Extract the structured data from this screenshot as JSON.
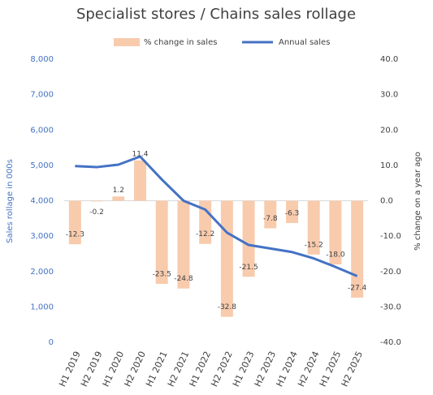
{
  "chart_data": {
    "type": "combo",
    "title": "Specialist stores / Chains sales rollage",
    "categories": [
      "H1 2019",
      "H2 2019",
      "H1 2020",
      "H2 2020",
      "H1 2021",
      "H2 2021",
      "H1 2022",
      "H2 2022",
      "H1 2023",
      "H2 2023",
      "H1 2024",
      "H2 2024",
      "H1 2025",
      "H2 2025"
    ],
    "series": [
      {
        "name": "% change in sales",
        "type": "bar",
        "axis": "y2",
        "color": "#f8cbad",
        "values": [
          -12.3,
          -0.2,
          1.2,
          11.4,
          -23.5,
          -24.8,
          -12.2,
          -32.8,
          -21.5,
          -7.8,
          -6.3,
          -15.2,
          -18.0,
          -27.4
        ],
        "value_labels": [
          "-12.3",
          "-0.2",
          "1.2",
          "11.4",
          "-23.5",
          "-24.8",
          "-12.2",
          "-32.8",
          "-21.5",
          "-7.8",
          "-6.3",
          "-15.2",
          "-18.0",
          "-27.4"
        ]
      },
      {
        "name": "Annual sales",
        "type": "line",
        "axis": "y",
        "color": "#4472c4",
        "values": [
          4980,
          4950,
          5020,
          5250,
          4600,
          4000,
          3750,
          3100,
          2750,
          2650,
          2550,
          2370,
          2130,
          1870
        ]
      }
    ],
    "ylabel": "Sales rollage in 000s",
    "y2label": "% change on a year ago",
    "ylim": [
      0,
      8000
    ],
    "yticks": [
      {
        "value": 0,
        "label": "0"
      },
      {
        "value": 1000,
        "label": "1,000"
      },
      {
        "value": 2000,
        "label": "2,000"
      },
      {
        "value": 3000,
        "label": "3,000"
      },
      {
        "value": 4000,
        "label": "4,000"
      },
      {
        "value": 5000,
        "label": "5,000"
      },
      {
        "value": 6000,
        "label": "6,000"
      },
      {
        "value": 7000,
        "label": "7,000"
      },
      {
        "value": 8000,
        "label": "8,000"
      }
    ],
    "y2lim": [
      -40,
      40
    ],
    "y2ticks": [
      {
        "value": -40,
        "label": "-40.0"
      },
      {
        "value": -30,
        "label": "-30.0"
      },
      {
        "value": -20,
        "label": "-20.0"
      },
      {
        "value": -10,
        "label": "-10.0"
      },
      {
        "value": 0,
        "label": "0.0"
      },
      {
        "value": 10,
        "label": "10.0"
      },
      {
        "value": 20,
        "label": "20.0"
      },
      {
        "value": 30,
        "label": "30.0"
      },
      {
        "value": 40,
        "label": "40.0"
      }
    ],
    "grid": false,
    "legend": "top"
  }
}
